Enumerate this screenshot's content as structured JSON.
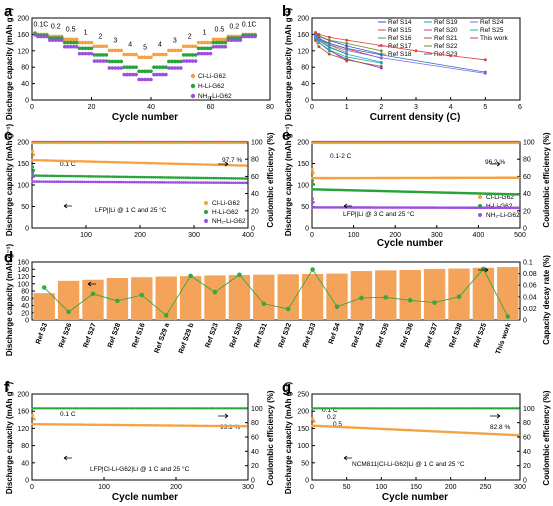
{
  "panels": {
    "a": {
      "letter": "a",
      "xlabel": "Cycle number",
      "ylabel": "Discharge capacity (mAh g⁻¹)",
      "legend": [
        "Cl-Li-G62",
        "H-Li-G62",
        "NH₂-Li-G62"
      ],
      "rate_labels": [
        "0.1C",
        "0.2",
        "0.5",
        "1",
        "2",
        "3",
        "4",
        "5",
        "4",
        "3",
        "2",
        "1",
        "0.5",
        "0.2",
        "0.1C"
      ]
    },
    "b": {
      "letter": "b",
      "xlabel": "Current density (C)",
      "ylabel": "Discharge capacity (mAh g⁻¹)"
    },
    "c": {
      "letter": "c",
      "xlabel": "",
      "ylabel": "Discharge capacity (mAh g⁻¹)",
      "y2label": "Coulombic efficiency (%)",
      "ann_rate": "0.1 C",
      "ann_ce": "97.7 %",
      "condition": "LFP||Li @ 1 C and 25 °C",
      "legend": [
        "Cl-Li-G62",
        "H-Li-G62",
        "NH₂-Li-G62"
      ]
    },
    "d": {
      "letter": "d",
      "ylabel": "Discharge capacity (mAh g⁻¹)",
      "y2label": "Capacity decay rate (%)"
    },
    "e": {
      "letter": "e",
      "xlabel": "Cycle number",
      "ylabel": "Discharge capacity (mAh g⁻¹)",
      "y2label": "Coulombic efficiency (%)",
      "ann_rate": "0.1-2 C",
      "ann_ce": "96.2 %",
      "condition": "LFP||Li @ 3 C and 25 °C",
      "legend": [
        "Cl-Li-G62",
        "H-Li-G62",
        "NH₂-Li-G62"
      ]
    },
    "f": {
      "letter": "f",
      "xlabel": "Cycle number",
      "ylabel": "Discharge capacity (mAh g⁻¹)",
      "y2label": "Coulombic efficiency (%)",
      "ann_rate": "0.1 C",
      "ann_ce": "99.1 %",
      "condition": "LFP|Cl-Li-G62|Li @ 1 C and 25 °C"
    },
    "g": {
      "letter": "g",
      "xlabel": "Cycle number",
      "ylabel": "Discharge capacity (mAh g⁻¹)",
      "y2label": "Coulombic efficiency (%)",
      "ann_rates": [
        "0.1 C",
        "0.2",
        "0.5"
      ],
      "ann_ce": "82.8 %",
      "condition": "NCM811|Cl-Li-G62|Li @ 1 C and 25 °C"
    }
  },
  "colors": {
    "cl": "#f5a142",
    "h": "#27a33a",
    "nh2": "#9b4fe0",
    "bar": "#f4a35b",
    "decay": "#3aa63f",
    "ce_cl": "#1fa52f",
    "ce_nh2": "#9b4fe0"
  },
  "chart_data": [
    {
      "type": "line",
      "panel": "a",
      "xlim": [
        0,
        80
      ],
      "ylim": [
        0,
        200
      ],
      "xticks": [
        0,
        20,
        40,
        60,
        80
      ],
      "yticks": [
        0,
        40,
        80,
        120,
        160,
        200
      ],
      "series": [
        {
          "name": "Cl-Li-G62",
          "color": "cl",
          "rate_steps": [
            160,
            155,
            148,
            140,
            131,
            121,
            111,
            104,
            111,
            121,
            131,
            140,
            148,
            155,
            160
          ]
        },
        {
          "name": "H-Li-G62",
          "color": "h",
          "rate_steps": [
            158,
            151,
            140,
            126,
            110,
            94,
            80,
            70,
            80,
            94,
            110,
            126,
            140,
            151,
            158
          ]
        },
        {
          "name": "NH₂-Li-G62",
          "color": "nh2",
          "rate_steps": [
            155,
            146,
            130,
            113,
            95,
            78,
            62,
            50,
            62,
            78,
            95,
            113,
            130,
            146,
            155
          ]
        }
      ]
    },
    {
      "type": "line",
      "panel": "b",
      "xlim": [
        0,
        6
      ],
      "ylim": [
        0,
        200
      ],
      "xticks": [
        0,
        1,
        2,
        3,
        4,
        5,
        6
      ],
      "yticks": [
        0,
        40,
        80,
        120,
        160,
        200
      ],
      "series": [
        {
          "name": "Ref S14",
          "color": "#4a4ad6",
          "x": [
            0.1,
            0.2,
            0.5,
            1,
            2
          ],
          "y": [
            162,
            155,
            145,
            132,
            112
          ]
        },
        {
          "name": "Ref S15",
          "color": "#e04040",
          "x": [
            0.1,
            0.2,
            0.5,
            1,
            2
          ],
          "y": [
            160,
            150,
            138,
            125,
            102
          ]
        },
        {
          "name": "Ref S16",
          "color": "#3a9a5a",
          "x": [
            0.1,
            0.2,
            0.5,
            1
          ],
          "y": [
            158,
            148,
            130,
            112
          ]
        },
        {
          "name": "Ref S17",
          "color": "#8a2be2",
          "x": [
            0.1,
            0.2,
            0.5,
            1,
            2
          ],
          "y": [
            156,
            140,
            120,
            100,
            78
          ]
        },
        {
          "name": "Ref S18",
          "color": "#d08020",
          "x": [
            0.1,
            0.2,
            0.5,
            1
          ],
          "y": [
            163,
            152,
            135,
            115
          ]
        },
        {
          "name": "Ref S19",
          "color": "#20a0c0",
          "x": [
            0.1,
            0.2,
            0.5,
            1,
            2
          ],
          "y": [
            158,
            145,
            128,
            112,
            92
          ]
        },
        {
          "name": "Ref S20",
          "color": "#c04090",
          "x": [
            0.1,
            0.2,
            0.5,
            1
          ],
          "y": [
            150,
            140,
            122,
            95
          ]
        },
        {
          "name": "Ref S21",
          "color": "#a05a2c",
          "x": [
            0.1,
            0.2,
            0.5,
            1,
            2
          ],
          "y": [
            145,
            130,
            112,
            98,
            82
          ]
        },
        {
          "name": "Ref S22",
          "color": "#6b8e23",
          "x": [
            0.1,
            0.2,
            0.5,
            1,
            2
          ],
          "y": [
            164,
            156,
            146,
            138,
            120
          ]
        },
        {
          "name": "Ref S23",
          "color": "#2f6fb5",
          "x": [
            0.1,
            0.2,
            0.5,
            1,
            2,
            5
          ],
          "y": [
            162,
            150,
            138,
            126,
            110,
            68
          ]
        },
        {
          "name": "Ref S24",
          "color": "#7b68ee",
          "x": [
            0.1,
            0.2,
            0.5,
            1,
            2,
            5
          ],
          "y": [
            160,
            148,
            135,
            121,
            103,
            65
          ]
        },
        {
          "name": "Ref S25",
          "color": "#20b2aa",
          "x": [
            0.1,
            0.2,
            0.5,
            1,
            2
          ],
          "y": [
            152,
            140,
            122,
            105,
            90
          ]
        },
        {
          "name": "This work",
          "color": "#e03a3a",
          "x": [
            0.1,
            0.2,
            0.5,
            1,
            2,
            3,
            4,
            5
          ],
          "y": [
            165,
            160,
            153,
            146,
            133,
            120,
            108,
            98
          ]
        }
      ]
    },
    {
      "type": "line",
      "panel": "c",
      "xlim": [
        0,
        400
      ],
      "ylim": [
        0,
        200
      ],
      "y2lim": [
        0,
        100
      ],
      "xticks": [
        100,
        200,
        300,
        400
      ],
      "yticks": [
        0,
        50,
        100,
        150,
        200
      ],
      "y2ticks": [
        0,
        20,
        40,
        60,
        80,
        100
      ],
      "series": [
        {
          "name": "Cl-Li-G62",
          "color": "cl",
          "start": 158,
          "end": 145
        },
        {
          "name": "H-Li-G62",
          "color": "h",
          "start": 122,
          "end": 115
        },
        {
          "name": "NH₂-Li-G62",
          "color": "nh2",
          "start": 108,
          "end": 105
        }
      ]
    },
    {
      "type": "bar",
      "panel": "d",
      "ylim": [
        0,
        160
      ],
      "y2lim": [
        0,
        0.1
      ],
      "yticks": [
        0,
        20,
        40,
        60,
        80,
        100,
        120,
        140,
        160
      ],
      "y2ticks": [
        0,
        0.02,
        0.04,
        0.06,
        0.08,
        0.1
      ],
      "categories": [
        "Ref S3",
        "Ref S26",
        "Ref S27",
        "Ref S28",
        "Ref S16",
        "Ref S29 a",
        "Ref S29 b",
        "Ref S23",
        "Ref S30",
        "Ref S31",
        "Ref S32",
        "Ref S33",
        "Ref S4",
        "Ref S34",
        "Ref S35",
        "Ref S36",
        "Ref S37",
        "Ref S38",
        "Ref S25",
        "This work"
      ],
      "values": [
        74,
        108,
        111,
        116,
        118,
        120,
        121,
        123,
        124,
        125,
        126,
        127,
        128,
        135,
        137,
        138,
        141,
        142,
        144,
        146
      ],
      "decay_rate": [
        0.056,
        0.014,
        0.045,
        0.033,
        0.043,
        0.008,
        0.076,
        0.048,
        0.078,
        0.028,
        0.019,
        0.087,
        0.023,
        0.038,
        0.039,
        0.034,
        0.03,
        0.04,
        0.088,
        0.006
      ]
    },
    {
      "type": "line",
      "panel": "e",
      "xlim": [
        0,
        500
      ],
      "ylim": [
        0,
        200
      ],
      "y2lim": [
        0,
        100
      ],
      "xticks": [
        0,
        100,
        200,
        300,
        400,
        500
      ],
      "yticks": [
        0,
        50,
        100,
        150,
        200
      ],
      "y2ticks": [
        0,
        20,
        40,
        60,
        80,
        100
      ],
      "series": [
        {
          "name": "Cl-Li-G62",
          "color": "cl",
          "start": 116,
          "end": 117
        },
        {
          "name": "H-Li-G62",
          "color": "h",
          "start": 90,
          "end": 78
        },
        {
          "name": "NH₂-Li-G62",
          "color": "nh2",
          "start": 48,
          "end": 47
        }
      ]
    },
    {
      "type": "line",
      "panel": "f",
      "xlim": [
        0,
        300
      ],
      "ylim": [
        0,
        200
      ],
      "y2lim": [
        0,
        120
      ],
      "xticks": [
        0,
        100,
        200,
        300
      ],
      "yticks": [
        0,
        40,
        80,
        120,
        160,
        200
      ],
      "y2ticks": [
        0,
        20,
        40,
        60,
        80,
        100
      ],
      "series": [
        {
          "name": "Cl-Li-G62",
          "color": "cl",
          "start": 130,
          "end": 125
        }
      ]
    },
    {
      "type": "line",
      "panel": "g",
      "xlim": [
        0,
        300
      ],
      "ylim": [
        0,
        250
      ],
      "y2lim": [
        0,
        120
      ],
      "xticks": [
        0,
        50,
        100,
        150,
        200,
        250,
        300
      ],
      "yticks": [
        0,
        50,
        100,
        150,
        200,
        250
      ],
      "y2ticks": [
        0,
        20,
        40,
        60,
        80,
        100
      ],
      "series": [
        {
          "name": "Cl-Li-G62",
          "color": "cl",
          "start": 158,
          "end": 130
        }
      ]
    }
  ]
}
